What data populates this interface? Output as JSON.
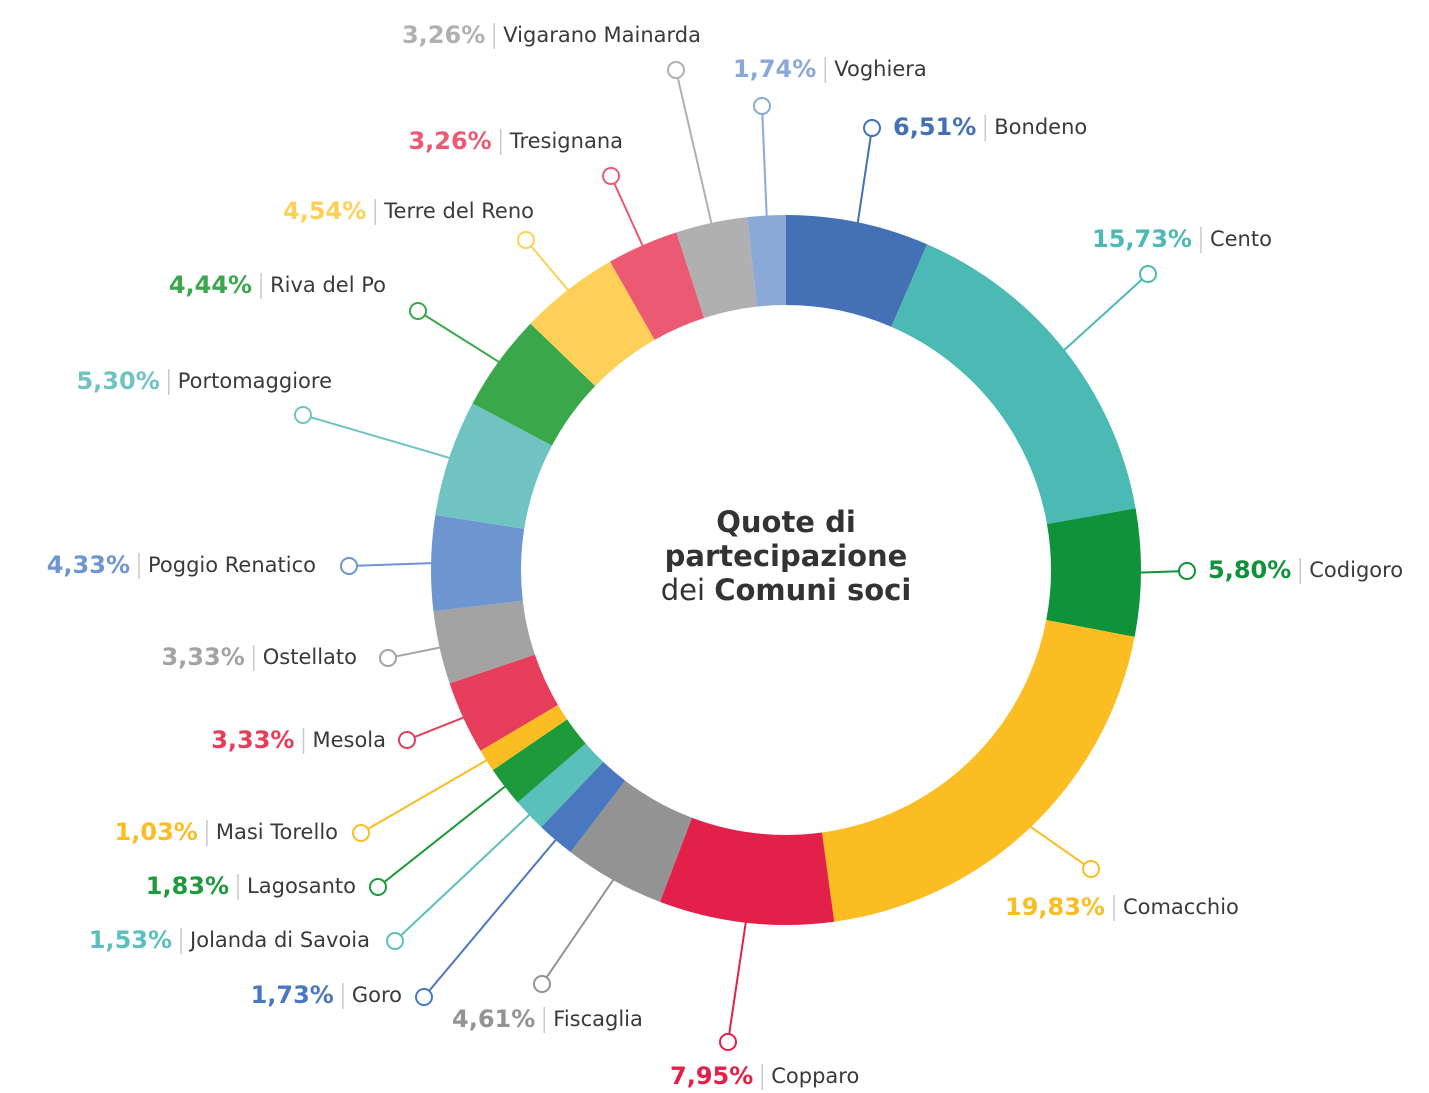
{
  "chart_data": {
    "type": "donut",
    "title": [
      "Quote di",
      "partecipazione",
      "dei",
      "Comuni soci"
    ],
    "categories": [
      "Bondeno",
      "Cento",
      "Codigoro",
      "Comacchio",
      "Copparo",
      "Fiscaglia",
      "Goro",
      "Jolanda di Savoia",
      "Lagosanto",
      "Masi Torello",
      "Mesola",
      "Ostellato",
      "Poggio Renatico",
      "Portomaggiore",
      "Riva del Po",
      "Terre del Reno",
      "Tresignana",
      "Vigarano Mainarda",
      "Voghiera"
    ],
    "values": [
      6.51,
      15.73,
      5.8,
      19.83,
      7.95,
      4.61,
      1.73,
      1.53,
      1.83,
      1.03,
      3.33,
      3.33,
      4.33,
      5.3,
      4.44,
      4.54,
      3.26,
      3.26,
      1.74
    ],
    "value_labels": [
      "6,51%",
      "15,73%",
      "5,80%",
      "19,83%",
      "7,95%",
      "4,61%",
      "1,73%",
      "1,53%",
      "1,83%",
      "1,03%",
      "3,33%",
      "3,33%",
      "4,33%",
      "5,30%",
      "4,44%",
      "4,54%",
      "3,26%",
      "3,26%",
      "1,74%"
    ],
    "colors": [
      "#4470b6",
      "#4bb9b4",
      "#0e923a",
      "#fbbd22",
      "#e3204a",
      "#939393",
      "#4a78c0",
      "#5bbfbb",
      "#1d9b3a",
      "#fbbd22",
      "#e63d5a",
      "#a3a3a3",
      "#6d95d0",
      "#6fc4c3",
      "#3aa84a",
      "#ffd057",
      "#eb5a72",
      "#b0b0b0",
      "#8aa8d8"
    ]
  }
}
